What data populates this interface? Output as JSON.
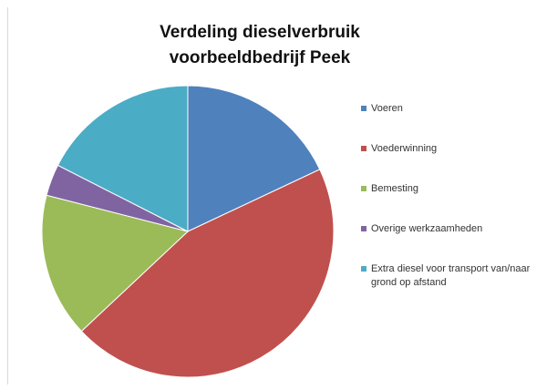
{
  "chart_data": {
    "type": "pie",
    "title": [
      "Verdeling dieselverbruik",
      "voorbeeldbedrijf Peek"
    ],
    "categories": [
      "Voeren",
      "Voederwinning",
      "Bemesting",
      "Overige werkzaamheden",
      "Extra diesel voor transport van/naar grond op afstand"
    ],
    "values": [
      18,
      45,
      16,
      3.5,
      17.5
    ],
    "colors": [
      "#4f81bd",
      "#c0504d",
      "#9bbb59",
      "#8064a2",
      "#4bacc6"
    ],
    "legend": "right"
  },
  "legend": [
    {
      "label": "Voeren",
      "color": "#4f81bd"
    },
    {
      "label": "Voederwinning",
      "color": "#c0504d"
    },
    {
      "label": "Bemesting",
      "color": "#9bbb59"
    },
    {
      "label": "Overige werkzaamheden",
      "color": "#8064a2"
    },
    {
      "label": "Extra diesel voor transport van/naar grond op afstand",
      "color": "#4bacc6"
    }
  ]
}
